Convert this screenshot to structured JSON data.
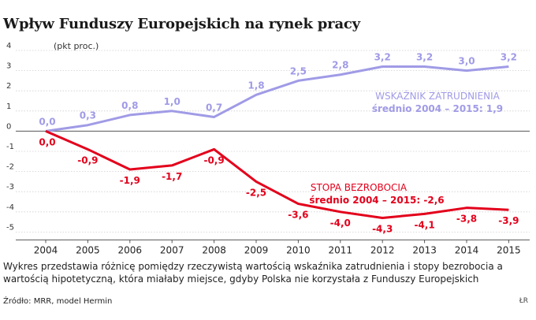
{
  "title": "Wpływ Funduszy Europejskich na rynek pracy",
  "description": "Wykres przedstawia różnicę pomiędzy rzeczywistą wartością wskaźnika zatrudnienia i stopy bezrobocia a wartością hipotetyczną, która miałaby miejsce, gdyby Polska nie korzystała z Funduszy Europejskich",
  "source": "Źródło: MRR, model Hermin",
  "credit": "ŁR",
  "chart_data": {
    "type": "line",
    "ylabel": "(pkt proc.)",
    "x": [
      "2004",
      "2005",
      "2006",
      "2007",
      "2008",
      "2009",
      "2010",
      "2011",
      "2012",
      "2013",
      "2014",
      "2015"
    ],
    "ylim": [
      -5,
      4
    ],
    "yticks": [
      4,
      3,
      2,
      1,
      0,
      -1,
      -2,
      -3,
      -4,
      -5
    ],
    "ytick_labels": [
      "4",
      "3",
      "2",
      "1",
      "0",
      "-1",
      "-2",
      "-3",
      "-4",
      "-5"
    ],
    "grid": true,
    "series": [
      {
        "name": "WSKAŹNIK ZATRUDNIENIA",
        "subtitle": "średnio 2004 – 2015: 1,9",
        "color": "#a09be6",
        "values": [
          0.0,
          0.3,
          0.8,
          1.0,
          0.7,
          1.8,
          2.5,
          2.8,
          3.2,
          3.2,
          3.0,
          3.2
        ],
        "labels": [
          "0,0",
          "0,3",
          "0,8",
          "1,0",
          "0,7",
          "1,8",
          "2,5",
          "2,8",
          "3,2",
          "3,2",
          "3,0",
          "3,2"
        ]
      },
      {
        "name": "STOPA BEZROBOCIA",
        "subtitle": "średnio 2004 – 2015: -2,6",
        "color": "#e3001b",
        "values": [
          0.0,
          -0.9,
          -1.9,
          -1.7,
          -0.9,
          -2.5,
          -3.6,
          -4.0,
          -4.3,
          -4.1,
          -3.8,
          -3.9
        ],
        "labels": [
          "0,0",
          "-0,9",
          "-1,9",
          "-1,7",
          "-0,9",
          "-2,5",
          "-3,6",
          "-4,0",
          "-4,3",
          "-4,1",
          "-3,8",
          "-3,9"
        ]
      }
    ]
  }
}
